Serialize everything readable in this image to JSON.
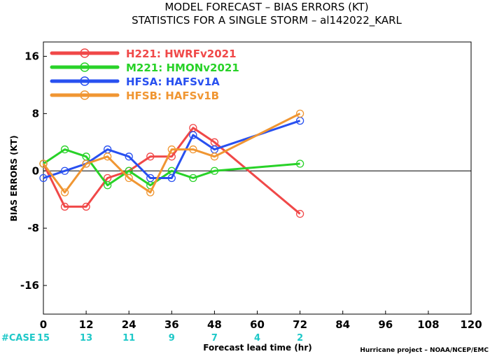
{
  "title_line1": "MODEL FORECAST – BIAS ERRORS (KT)",
  "title_line2": "STATISTICS FOR A SINGLE STORM – al142022_KARL",
  "credit": "Hurricane project – NOAA/NCEP/EMC",
  "case_label": "#CASE",
  "chart_data": {
    "type": "line",
    "title": "MODEL FORECAST – BIAS ERRORS (KT)",
    "subtitle": "STATISTICS FOR A SINGLE STORM – al142022_KARL",
    "xlabel": "Forecast lead time (hr)",
    "ylabel": "BIAS ERRORS (KT)",
    "xlim": [
      0,
      120
    ],
    "ylim": [
      -20,
      18
    ],
    "x_ticks": [
      0,
      12,
      24,
      36,
      48,
      60,
      72,
      84,
      96,
      108,
      120
    ],
    "y_ticks": [
      -16,
      -8,
      0,
      8,
      16
    ],
    "grid": false,
    "zero_line": true,
    "legend_position": "top-left",
    "case_counts": [
      {
        "x": 0,
        "n": "15"
      },
      {
        "x": 12,
        "n": "13"
      },
      {
        "x": 24,
        "n": "11"
      },
      {
        "x": 36,
        "n": "9"
      },
      {
        "x": 48,
        "n": "7"
      },
      {
        "x": 60,
        "n": "4"
      },
      {
        "x": 72,
        "n": "2"
      }
    ],
    "series": [
      {
        "name": "H221: HWRFv2021",
        "color": "#f04848",
        "x": [
          0,
          6,
          12,
          18,
          24,
          30,
          36,
          42,
          48,
          72
        ],
        "y": [
          1,
          -5,
          -5,
          -1,
          0,
          2,
          2,
          6,
          4,
          -6
        ]
      },
      {
        "name": "M221: HMONv2021",
        "color": "#28d228",
        "x": [
          0,
          6,
          12,
          18,
          24,
          30,
          36,
          42,
          48,
          72
        ],
        "y": [
          1,
          3,
          2,
          -2,
          0,
          -2,
          0,
          -1,
          0,
          1
        ]
      },
      {
        "name": "HFSA: HAFSv1A",
        "color": "#2850f0",
        "x": [
          0,
          6,
          12,
          18,
          24,
          30,
          36,
          42,
          48,
          72
        ],
        "y": [
          -1,
          0,
          1,
          3,
          2,
          -1,
          -1,
          5,
          3,
          7
        ]
      },
      {
        "name": "HFSB: HAFSv1B",
        "color": "#f09632",
        "x": [
          0,
          6,
          12,
          18,
          24,
          30,
          36,
          42,
          48,
          72
        ],
        "y": [
          1,
          -3,
          1,
          2,
          -1,
          -3,
          3,
          3,
          2,
          8
        ]
      }
    ]
  }
}
